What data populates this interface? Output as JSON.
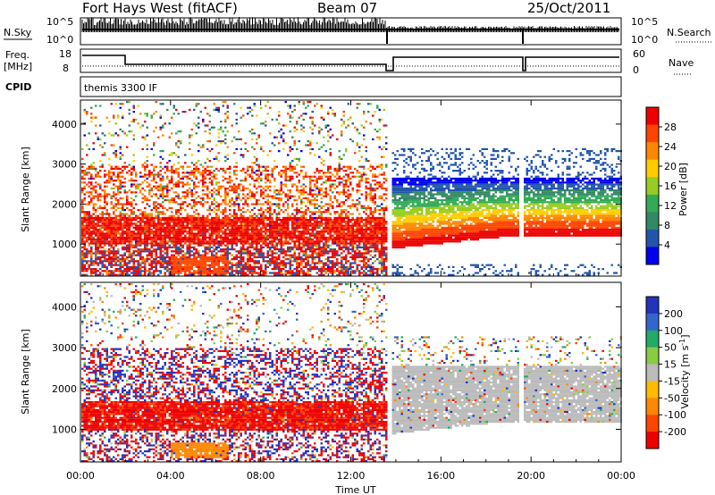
{
  "header": {
    "title": "Fort Hays West (fitACF)",
    "beam": "Beam 07",
    "date": "25/Oct/2011"
  },
  "aux": {
    "nsky_label": "N.Sky",
    "nsky_ticks": [
      "10^5",
      "10^0"
    ],
    "nsearch_label": "N.Search",
    "nsearch_ticks": [
      "10^5",
      "10^0"
    ],
    "freq_label_1": "Freq.",
    "freq_label_2": "[MHz]",
    "freq_ticks": [
      "18",
      "8"
    ],
    "nave_label": "Nave",
    "nave_ticks": [
      "60",
      "0"
    ],
    "cpid_label": "CPID",
    "cpid_value": "themis 3300 IF"
  },
  "chart_data": [
    {
      "type": "heatmap",
      "name": "power",
      "ylabel": "Slant Range [km]",
      "xlabel": "Time UT",
      "yticks": [
        1000,
        2000,
        3000,
        4000
      ],
      "ylim": [
        200,
        4600
      ],
      "xlim": [
        0,
        24
      ],
      "xticks": [
        0,
        4,
        8,
        12,
        16,
        20,
        24
      ],
      "xtick_labels": [
        "00:00",
        "04:00",
        "08:00",
        "12:00",
        "16:00",
        "20:00",
        "00:00"
      ],
      "colorbar": {
        "label": "Power [dB]",
        "ticks": [
          "28",
          "24",
          "20",
          "16",
          "12",
          "8",
          "4"
        ],
        "colors": [
          "#ee0000",
          "#ff4400",
          "#ff8800",
          "#ffcc00",
          "#99cc22",
          "#33aa55",
          "#338866",
          "#2255aa",
          "#0000ee"
        ]
      }
    },
    {
      "type": "heatmap",
      "name": "velocity",
      "ylabel": "Slant Range [km]",
      "xlabel": "Time UT",
      "yticks": [
        1000,
        2000,
        3000,
        4000
      ],
      "ylim": [
        200,
        4600
      ],
      "xlim": [
        0,
        24
      ],
      "xticks": [
        0,
        4,
        8,
        12,
        16,
        20,
        24
      ],
      "xtick_labels": [
        "00:00",
        "04:00",
        "08:00",
        "12:00",
        "16:00",
        "20:00",
        "00:00"
      ],
      "colorbar": {
        "label": "Velocity [m s",
        "label_sup": "-1",
        "label_end": "]",
        "ticks": [
          "200",
          "100",
          "50",
          "15",
          "-15",
          "-50",
          "-100",
          "-200"
        ],
        "colors": [
          "#2233bb",
          "#3366cc",
          "#22aa66",
          "#88cc44",
          "#bbbbbb",
          "#ffbb00",
          "#ff8800",
          "#ff4400",
          "#ee0000"
        ]
      }
    }
  ]
}
